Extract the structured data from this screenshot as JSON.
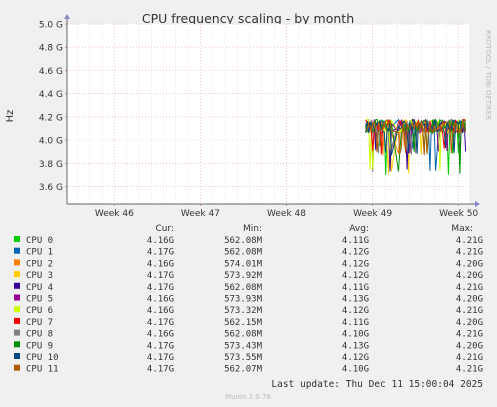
{
  "chart_data": {
    "type": "line",
    "title": "CPU frequency scaling - by month",
    "ylabel": "Hz",
    "ylim": [
      3.45,
      5.0
    ],
    "y_ticks": [
      "3.6 G",
      "3.8 G",
      "4.0 G",
      "4.2 G",
      "4.4 G",
      "4.6 G",
      "4.8 G",
      "5.0 G"
    ],
    "y_tick_values": [
      3.6,
      3.8,
      4.0,
      4.2,
      4.4,
      4.6,
      4.8,
      5.0
    ],
    "x_ticks": [
      "Week 46",
      "Week 47",
      "Week 48",
      "Week 49",
      "Week 50"
    ],
    "x_tick_positions": [
      46,
      47,
      48,
      49,
      50
    ],
    "xlim": [
      45.45,
      50.12
    ],
    "grid": true,
    "legend_headers": [
      "Cur:",
      "Min:",
      "Avg:",
      "Max:"
    ],
    "series": [
      {
        "name": "CPU 0",
        "color": "#00cc00",
        "cur": "4.16G",
        "min": "562.08M",
        "avg": "4.11G",
        "max": "4.21G"
      },
      {
        "name": "CPU 1",
        "color": "#0066b3",
        "cur": "4.17G",
        "min": "562.08M",
        "avg": "4.12G",
        "max": "4.21G"
      },
      {
        "name": "CPU 2",
        "color": "#ff8000",
        "cur": "4.16G",
        "min": "574.01M",
        "avg": "4.12G",
        "max": "4.20G"
      },
      {
        "name": "CPU 3",
        "color": "#ffcc00",
        "cur": "4.17G",
        "min": "573.92M",
        "avg": "4.12G",
        "max": "4.20G"
      },
      {
        "name": "CPU 4",
        "color": "#330099",
        "cur": "4.17G",
        "min": "562.08M",
        "avg": "4.11G",
        "max": "4.21G"
      },
      {
        "name": "CPU 5",
        "color": "#990099",
        "cur": "4.16G",
        "min": "573.93M",
        "avg": "4.13G",
        "max": "4.20G"
      },
      {
        "name": "CPU 6",
        "color": "#ccff00",
        "cur": "4.16G",
        "min": "573.32M",
        "avg": "4.12G",
        "max": "4.21G"
      },
      {
        "name": "CPU 7",
        "color": "#ff0000",
        "cur": "4.17G",
        "min": "562.15M",
        "avg": "4.11G",
        "max": "4.20G"
      },
      {
        "name": "CPU 8",
        "color": "#808080",
        "cur": "4.16G",
        "min": "562.08M",
        "avg": "4.10G",
        "max": "4.21G"
      },
      {
        "name": "CPU 9",
        "color": "#008f00",
        "cur": "4.17G",
        "min": "573.43M",
        "avg": "4.13G",
        "max": "4.20G"
      },
      {
        "name": "CPU 10",
        "color": "#00487d",
        "cur": "4.17G",
        "min": "573.55M",
        "avg": "4.12G",
        "max": "4.21G"
      },
      {
        "name": "CPU 11",
        "color": "#b35a00",
        "cur": "4.17G",
        "min": "562.07M",
        "avg": "4.10G",
        "max": "4.21G"
      }
    ],
    "data_window": {
      "x_start": 48.92,
      "x_end": 50.08,
      "y_center": 4.12,
      "y_dips": [
        3.7,
        3.86,
        3.88,
        3.9
      ]
    }
  },
  "footer": {
    "last_update": "Last update: Thu Dec 11 15:00:04 2025",
    "watermark": "RRDTOOL / TOBI OETIKER",
    "version": "Munin 2.0.76"
  }
}
